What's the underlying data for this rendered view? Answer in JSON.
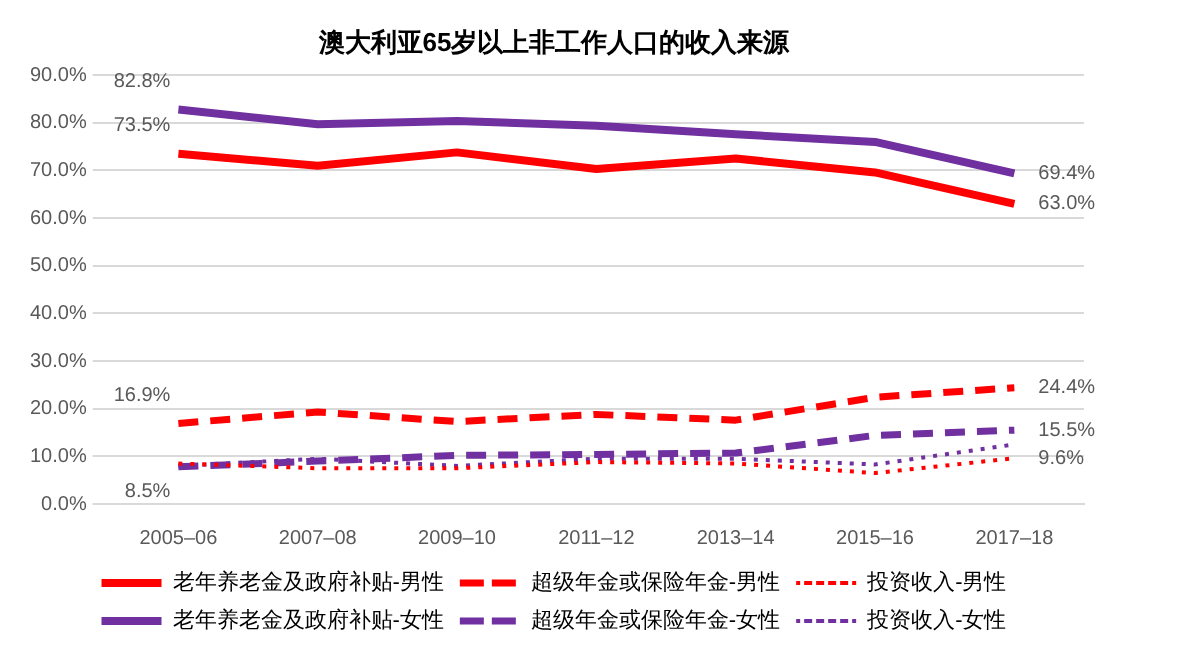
{
  "chart_data": {
    "type": "line",
    "title": "澳大利亚65岁以上非工作人口的收入来源",
    "categories": [
      "2005–06",
      "2007–08",
      "2009–10",
      "2011–12",
      "2013–14",
      "2015–16",
      "2017–18"
    ],
    "series": [
      {
        "name": "老年养老金及政府补贴-男性",
        "color": "#ff0000",
        "line_style": "solid",
        "values": [
          73.5,
          71.0,
          73.8,
          70.3,
          72.5,
          69.6,
          63.0
        ],
        "value_labels": [
          "73.5%",
          null,
          null,
          null,
          null,
          null,
          "63.0%"
        ]
      },
      {
        "name": "超级年金或保险年金-男性",
        "color": "#ff0000",
        "line_style": "dashed",
        "values": [
          16.9,
          19.3,
          17.3,
          18.8,
          17.6,
          22.4,
          24.4
        ],
        "value_labels": [
          "16.9%",
          null,
          null,
          null,
          null,
          null,
          "24.4%"
        ]
      },
      {
        "name": "投资收入-男性",
        "color": "#ff0000",
        "line_style": "dotted",
        "values": [
          8.5,
          7.5,
          7.5,
          8.8,
          8.5,
          6.5,
          9.6
        ],
        "value_labels": [
          "8.5%",
          null,
          null,
          null,
          null,
          null,
          "9.6%"
        ]
      },
      {
        "name": "老年养老金及政府补贴-女性",
        "color": "#7030a0",
        "line_style": "solid",
        "values": [
          82.8,
          79.7,
          80.4,
          79.4,
          77.6,
          76.0,
          69.4
        ],
        "value_labels": [
          "82.8%",
          null,
          null,
          null,
          null,
          null,
          "69.4%"
        ]
      },
      {
        "name": "超级年金或保险年金-女性",
        "color": "#7030a0",
        "line_style": "dashed",
        "values": [
          7.8,
          9.0,
          10.2,
          10.4,
          10.7,
          14.4,
          15.5
        ],
        "value_labels": [
          null,
          null,
          null,
          null,
          null,
          null,
          "15.5%"
        ]
      },
      {
        "name": "投资收入-女性",
        "color": "#7030a0",
        "line_style": "dotted",
        "values": [
          8.0,
          9.5,
          8.0,
          9.5,
          9.5,
          8.3,
          12.5
        ]
      }
    ],
    "ylim": [
      0,
      90
    ],
    "yticks": [
      {
        "value": 0,
        "label": "0.0%"
      },
      {
        "value": 10,
        "label": "10.0%"
      },
      {
        "value": 20,
        "label": "20.0%"
      },
      {
        "value": 30,
        "label": "30.0%"
      },
      {
        "value": 40,
        "label": "40.0%"
      },
      {
        "value": 50,
        "label": "50.0%"
      },
      {
        "value": 60,
        "label": "60.0%"
      },
      {
        "value": 70,
        "label": "70.0%"
      },
      {
        "value": 80,
        "label": "80.0%"
      },
      {
        "value": 90,
        "label": "90.0%"
      }
    ],
    "grid": "y",
    "legend": "bottom",
    "marker": "none"
  }
}
